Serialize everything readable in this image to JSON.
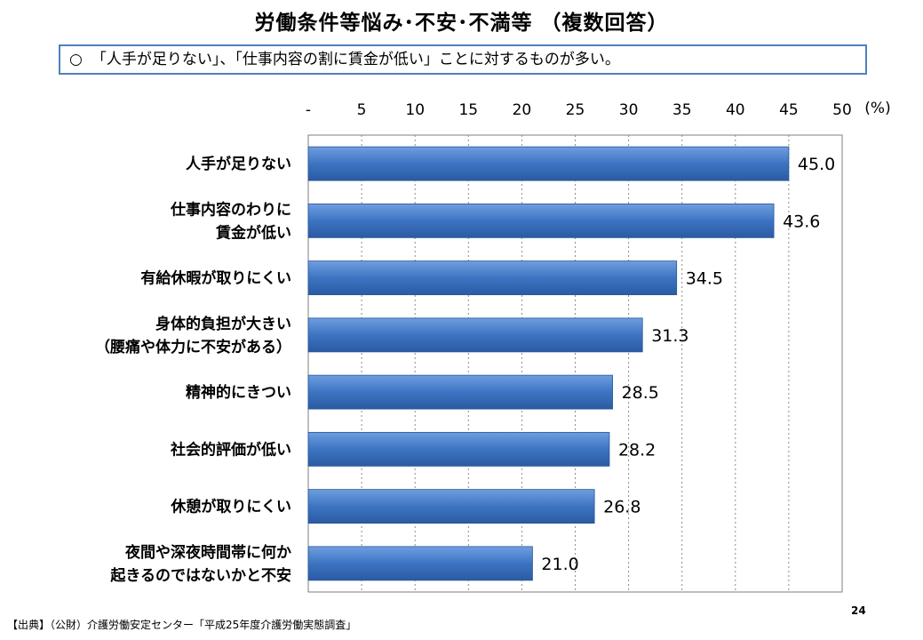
{
  "page_title": "労働条件等悩み･不安･不満等 （複数回答）",
  "summary": {
    "mark": "○",
    "text": "「人手が足りない」、「仕事内容の割に賃金が低い」ことに対するものが多い。"
  },
  "footer": {
    "source": "【出典】（公財）介護労働安定センター「平成25年度介護労働実態調査」",
    "page_number": "24"
  },
  "chart_data": {
    "type": "bar",
    "orientation": "horizontal",
    "unit_label": "(%)",
    "xlim": [
      0,
      50
    ],
    "x_ticks": [
      "-",
      "5",
      "10",
      "15",
      "20",
      "25",
      "30",
      "35",
      "40",
      "45",
      "50"
    ],
    "grid": true,
    "bar_color": "#3b73c0",
    "categories": [
      [
        "人手が足りない"
      ],
      [
        "仕事内容のわりに",
        "賃金が低い"
      ],
      [
        "有給休暇が取りにくい"
      ],
      [
        "身体的負担が大きい",
        "（腰痛や体力に不安がある）"
      ],
      [
        "精神的にきつい"
      ],
      [
        "社会的評価が低い"
      ],
      [
        "休憩が取りにくい"
      ],
      [
        "夜間や深夜時間帯に何か",
        "起きるのではないかと不安"
      ]
    ],
    "values": [
      45.0,
      43.6,
      34.5,
      31.3,
      28.5,
      28.2,
      26.8,
      21.0
    ],
    "value_labels": [
      "45.0",
      "43.6",
      "34.5",
      "31.3",
      "28.5",
      "28.2",
      "26.8",
      "21.0"
    ]
  }
}
